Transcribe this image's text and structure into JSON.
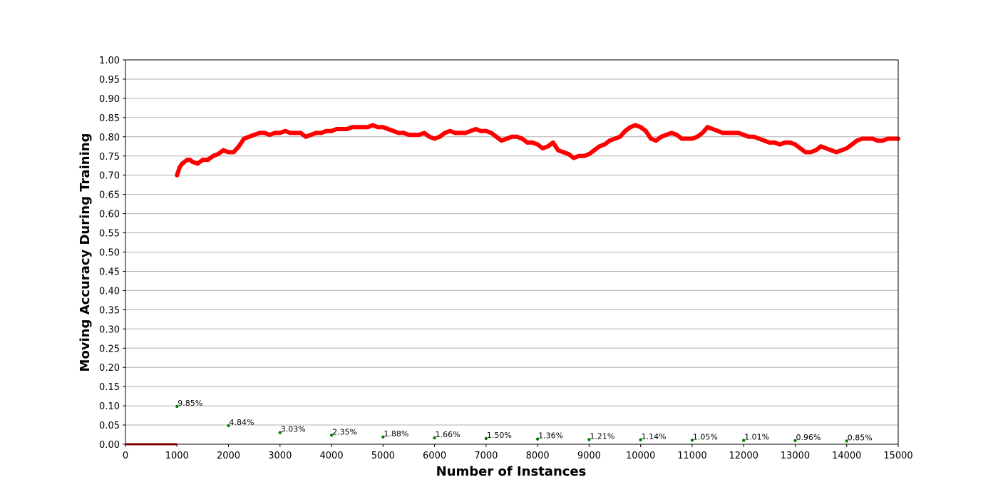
{
  "chart_data": {
    "type": "scatter",
    "xlabel": "Number of Instances",
    "ylabel": "Moving Accuracy During Training",
    "xlim": [
      0,
      15000
    ],
    "ylim": [
      0,
      1.0
    ],
    "x_ticks": [
      "0",
      "1000",
      "2000",
      "3000",
      "4000",
      "5000",
      "6000",
      "7000",
      "8000",
      "9000",
      "10000",
      "11000",
      "12000",
      "13000",
      "14000",
      "15000"
    ],
    "y_ticks": [
      "0.00",
      "0.05",
      "0.10",
      "0.15",
      "0.20",
      "0.25",
      "0.30",
      "0.35",
      "0.40",
      "0.45",
      "0.50",
      "0.55",
      "0.60",
      "0.65",
      "0.70",
      "0.75",
      "0.80",
      "0.85",
      "0.90",
      "0.95",
      "1.00"
    ],
    "grid": "horizontal",
    "colors": {
      "accuracy": "#ff0000",
      "markers": "#008000",
      "baseline": "#cc0000"
    },
    "accuracy_series": {
      "x": [
        1000,
        1050,
        1100,
        1200,
        1250,
        1300,
        1400,
        1500,
        1600,
        1700,
        1800,
        1900,
        2000,
        2100,
        2200,
        2300,
        2400,
        2500,
        2600,
        2700,
        2800,
        2900,
        3000,
        3100,
        3200,
        3300,
        3400,
        3500,
        3600,
        3700,
        3800,
        3900,
        4000,
        4100,
        4200,
        4300,
        4400,
        4500,
        4600,
        4700,
        4800,
        4900,
        5000,
        5100,
        5200,
        5300,
        5400,
        5500,
        5600,
        5700,
        5800,
        5900,
        6000,
        6100,
        6200,
        6300,
        6400,
        6500,
        6600,
        6700,
        6800,
        6900,
        7000,
        7100,
        7200,
        7300,
        7400,
        7500,
        7600,
        7700,
        7800,
        7900,
        8000,
        8100,
        8200,
        8300,
        8400,
        8500,
        8600,
        8700,
        8800,
        8900,
        9000,
        9100,
        9200,
        9300,
        9400,
        9500,
        9600,
        9700,
        9800,
        9900,
        10000,
        10100,
        10200,
        10300,
        10400,
        10500,
        10600,
        10700,
        10800,
        10900,
        11000,
        11100,
        11200,
        11300,
        11400,
        11500,
        11600,
        11700,
        11800,
        11900,
        12000,
        12100,
        12200,
        12300,
        12400,
        12500,
        12600,
        12700,
        12800,
        12900,
        13000,
        13100,
        13200,
        13300,
        13400,
        13500,
        13600,
        13700,
        13800,
        13900,
        14000,
        14100,
        14200,
        14300,
        14400,
        14500,
        14600,
        14700,
        14800,
        14900,
        15000
      ],
      "y": [
        0.7,
        0.72,
        0.73,
        0.74,
        0.74,
        0.735,
        0.73,
        0.74,
        0.74,
        0.75,
        0.755,
        0.765,
        0.76,
        0.76,
        0.775,
        0.795,
        0.8,
        0.805,
        0.81,
        0.81,
        0.805,
        0.81,
        0.81,
        0.815,
        0.81,
        0.81,
        0.81,
        0.8,
        0.805,
        0.81,
        0.81,
        0.815,
        0.815,
        0.82,
        0.82,
        0.82,
        0.825,
        0.825,
        0.825,
        0.825,
        0.83,
        0.825,
        0.825,
        0.82,
        0.815,
        0.81,
        0.81,
        0.805,
        0.805,
        0.805,
        0.81,
        0.8,
        0.795,
        0.8,
        0.81,
        0.815,
        0.81,
        0.81,
        0.81,
        0.815,
        0.82,
        0.815,
        0.815,
        0.81,
        0.8,
        0.79,
        0.795,
        0.8,
        0.8,
        0.795,
        0.785,
        0.785,
        0.78,
        0.77,
        0.775,
        0.785,
        0.765,
        0.76,
        0.755,
        0.745,
        0.75,
        0.75,
        0.755,
        0.765,
        0.775,
        0.78,
        0.79,
        0.795,
        0.8,
        0.815,
        0.825,
        0.83,
        0.825,
        0.815,
        0.795,
        0.79,
        0.8,
        0.805,
        0.81,
        0.805,
        0.795,
        0.795,
        0.795,
        0.8,
        0.81,
        0.825,
        0.82,
        0.815,
        0.81,
        0.81,
        0.81,
        0.81,
        0.805,
        0.8,
        0.8,
        0.795,
        0.79,
        0.785,
        0.785,
        0.78,
        0.785,
        0.785,
        0.78,
        0.77,
        0.76,
        0.76,
        0.765,
        0.775,
        0.77,
        0.765,
        0.76,
        0.765,
        0.77,
        0.78,
        0.79,
        0.795,
        0.795,
        0.795,
        0.79,
        0.79,
        0.795,
        0.795,
        0.795
      ]
    },
    "baseline": {
      "x": [
        0,
        1000
      ],
      "y": [
        0,
        0
      ]
    },
    "markers": [
      {
        "x": 1000,
        "y": 0.0985,
        "label": "9.85%"
      },
      {
        "x": 2000,
        "y": 0.0484,
        "label": "4.84%"
      },
      {
        "x": 3000,
        "y": 0.0303,
        "label": "3.03%"
      },
      {
        "x": 4000,
        "y": 0.0235,
        "label": "2.35%"
      },
      {
        "x": 5000,
        "y": 0.0188,
        "label": "1.88%"
      },
      {
        "x": 6000,
        "y": 0.0166,
        "label": "1.66%"
      },
      {
        "x": 7000,
        "y": 0.015,
        "label": "1.50%"
      },
      {
        "x": 8000,
        "y": 0.0136,
        "label": "1.36%"
      },
      {
        "x": 9000,
        "y": 0.0121,
        "label": "1.21%"
      },
      {
        "x": 10000,
        "y": 0.0114,
        "label": "1.14%"
      },
      {
        "x": 11000,
        "y": 0.0105,
        "label": "1.05%"
      },
      {
        "x": 12000,
        "y": 0.0101,
        "label": "1.01%"
      },
      {
        "x": 13000,
        "y": 0.0096,
        "label": "0.96%"
      },
      {
        "x": 14000,
        "y": 0.0085,
        "label": "0.85%"
      }
    ]
  }
}
